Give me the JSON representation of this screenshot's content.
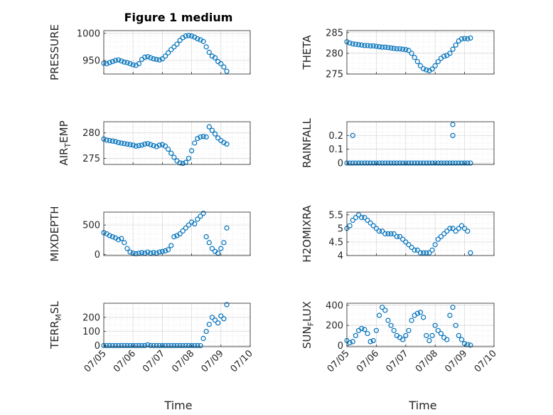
{
  "figure": {
    "title": "Figure 1 medium",
    "xlabel": "Time",
    "xticks": [
      "07/05",
      "07/06",
      "07/07",
      "07/08",
      "07/09",
      "07/10"
    ],
    "marker_color": "#0072BD"
  },
  "chart_data": [
    {
      "type": "scatter",
      "ylabel": "PRESSURE",
      "ylabel_sub": null,
      "xlim": [
        0,
        5
      ],
      "ylim": [
        925,
        1005
      ],
      "yticks": [
        "950",
        "1000"
      ],
      "ytick_values": [
        950,
        1000
      ],
      "grid": true,
      "x": [
        0.0,
        0.1,
        0.2,
        0.3,
        0.4,
        0.5,
        0.6,
        0.7,
        0.8,
        0.9,
        1.0,
        1.1,
        1.2,
        1.3,
        1.4,
        1.5,
        1.6,
        1.7,
        1.8,
        1.9,
        2.0,
        2.1,
        2.2,
        2.3,
        2.4,
        2.5,
        2.6,
        2.7,
        2.8,
        2.9,
        3.0,
        3.1,
        3.2,
        3.3,
        3.4,
        3.5,
        3.6,
        3.7,
        3.8,
        3.9,
        4.0,
        4.1,
        4.2
      ],
      "y": [
        945,
        944,
        946,
        948,
        950,
        951,
        949,
        947,
        946,
        944,
        942,
        941,
        944,
        952,
        956,
        957,
        955,
        953,
        952,
        951,
        953,
        958,
        964,
        970,
        975,
        980,
        987,
        992,
        995,
        996,
        995,
        993,
        990,
        988,
        985,
        975,
        965,
        958,
        955,
        948,
        944,
        938,
        930
      ]
    },
    {
      "type": "scatter",
      "ylabel": "THETA",
      "ylabel_sub": null,
      "xlim": [
        0,
        5
      ],
      "ylim": [
        275,
        285.5
      ],
      "yticks": [
        "275",
        "280",
        "285"
      ],
      "ytick_values": [
        275,
        280,
        285
      ],
      "grid": true,
      "x": [
        0.0,
        0.1,
        0.2,
        0.3,
        0.4,
        0.5,
        0.6,
        0.7,
        0.8,
        0.9,
        1.0,
        1.1,
        1.2,
        1.3,
        1.4,
        1.5,
        1.6,
        1.7,
        1.8,
        1.9,
        2.0,
        2.1,
        2.2,
        2.3,
        2.4,
        2.5,
        2.6,
        2.7,
        2.8,
        2.9,
        3.0,
        3.1,
        3.2,
        3.3,
        3.4,
        3.5,
        3.6,
        3.7,
        3.8,
        3.9,
        4.0,
        4.1,
        4.2
      ],
      "y": [
        282.8,
        282.5,
        282.3,
        282.2,
        282.1,
        282.0,
        281.9,
        281.9,
        281.8,
        281.8,
        281.7,
        281.6,
        281.5,
        281.5,
        281.4,
        281.3,
        281.2,
        281.1,
        281.1,
        281.0,
        280.9,
        280.7,
        280.0,
        279.0,
        278.0,
        277.0,
        276.3,
        276.0,
        275.8,
        276.2,
        277.0,
        278.0,
        278.8,
        279.3,
        279.5,
        280.0,
        281.0,
        282.0,
        283.0,
        283.5,
        283.6,
        283.5,
        283.7
      ]
    },
    {
      "type": "scatter",
      "ylabel": "AIR",
      "ylabel_sub": "T",
      "ylabel_suffix": "EMP",
      "xlim": [
        0,
        5
      ],
      "ylim": [
        273.8,
        282.2
      ],
      "yticks": [
        "275",
        "280"
      ],
      "ytick_values": [
        275,
        280
      ],
      "grid": true,
      "x": [
        0.0,
        0.1,
        0.2,
        0.3,
        0.4,
        0.5,
        0.6,
        0.7,
        0.8,
        0.9,
        1.0,
        1.1,
        1.2,
        1.3,
        1.4,
        1.5,
        1.6,
        1.7,
        1.8,
        1.9,
        2.0,
        2.1,
        2.2,
        2.3,
        2.4,
        2.5,
        2.6,
        2.7,
        2.8,
        2.9,
        3.0,
        3.1,
        3.2,
        3.3,
        3.4,
        3.5,
        3.6,
        3.7,
        3.8,
        3.9,
        4.0,
        4.1,
        4.2
      ],
      "y": [
        278.8,
        278.6,
        278.5,
        278.4,
        278.3,
        278.1,
        278.0,
        277.9,
        277.8,
        277.7,
        277.6,
        277.4,
        277.5,
        277.6,
        277.8,
        277.9,
        277.7,
        277.5,
        277.3,
        277.6,
        277.7,
        277.4,
        276.8,
        276.0,
        275.2,
        274.5,
        274.1,
        274.0,
        274.2,
        275.0,
        276.5,
        278.0,
        278.9,
        279.2,
        279.3,
        279.2,
        281.2,
        280.5,
        279.8,
        279.0,
        278.5,
        278.1,
        277.8
      ]
    },
    {
      "type": "scatter",
      "ylabel": "RAINFALL",
      "ylabel_sub": null,
      "xlim": [
        0,
        5
      ],
      "ylim": [
        -0.01,
        0.3
      ],
      "yticks": [
        "0",
        "0.1",
        "0.2"
      ],
      "ytick_values": [
        0,
        0.1,
        0.2
      ],
      "grid": true,
      "x": [
        0.0,
        0.1,
        0.2,
        0.3,
        0.4,
        0.5,
        0.6,
        0.7,
        0.8,
        0.9,
        1.0,
        1.1,
        1.2,
        1.3,
        1.4,
        1.5,
        1.6,
        1.7,
        1.8,
        1.9,
        2.0,
        2.1,
        2.2,
        2.3,
        2.4,
        2.5,
        2.6,
        2.7,
        2.8,
        2.9,
        3.0,
        3.1,
        3.2,
        3.3,
        3.4,
        3.5,
        3.6,
        3.7,
        3.8,
        3.9,
        4.0,
        4.1,
        4.2,
        0.2,
        3.6,
        3.6
      ],
      "y": [
        0,
        0,
        0,
        0,
        0,
        0,
        0,
        0,
        0,
        0,
        0,
        0,
        0,
        0,
        0,
        0,
        0,
        0,
        0,
        0,
        0,
        0,
        0,
        0,
        0,
        0,
        0,
        0,
        0,
        0,
        0,
        0,
        0,
        0,
        0,
        0,
        0,
        0,
        0,
        0,
        0,
        0,
        0,
        0.2,
        0.2,
        0.28
      ]
    },
    {
      "type": "scatter",
      "ylabel": "MIXDEPTH",
      "ylabel_sub": null,
      "xlim": [
        0,
        5
      ],
      "ylim": [
        -20,
        720
      ],
      "yticks": [
        "0",
        "500"
      ],
      "ytick_values": [
        0,
        500
      ],
      "grid": true,
      "x": [
        0.0,
        0.1,
        0.2,
        0.3,
        0.4,
        0.5,
        0.6,
        0.7,
        0.8,
        0.9,
        1.0,
        1.1,
        1.2,
        1.3,
        1.4,
        1.5,
        1.6,
        1.7,
        1.8,
        1.9,
        2.0,
        2.1,
        2.2,
        2.3,
        2.4,
        2.5,
        2.6,
        2.7,
        2.8,
        2.9,
        3.0,
        3.1,
        3.2,
        3.3,
        3.4,
        3.5,
        3.6,
        3.7,
        3.8,
        3.9,
        4.0,
        4.1,
        4.2
      ],
      "y": [
        370,
        350,
        320,
        300,
        280,
        250,
        270,
        200,
        100,
        40,
        20,
        10,
        20,
        30,
        20,
        40,
        20,
        30,
        20,
        40,
        50,
        60,
        80,
        150,
        300,
        320,
        350,
        400,
        450,
        500,
        550,
        520,
        600,
        650,
        700,
        300,
        200,
        100,
        50,
        20,
        100,
        200,
        450
      ]
    },
    {
      "type": "scatter",
      "ylabel": "H2OMIXRA",
      "ylabel_sub": null,
      "xlim": [
        0,
        5
      ],
      "ylim": [
        4.0,
        5.6
      ],
      "yticks": [
        "4",
        "4.5",
        "5",
        "5.5"
      ],
      "ytick_values": [
        4,
        4.5,
        5,
        5.5
      ],
      "grid": true,
      "x": [
        0.0,
        0.1,
        0.2,
        0.3,
        0.4,
        0.5,
        0.6,
        0.7,
        0.8,
        0.9,
        1.0,
        1.1,
        1.2,
        1.3,
        1.4,
        1.5,
        1.6,
        1.7,
        1.8,
        1.9,
        2.0,
        2.1,
        2.2,
        2.3,
        2.4,
        2.5,
        2.6,
        2.7,
        2.8,
        2.9,
        3.0,
        3.1,
        3.2,
        3.3,
        3.4,
        3.5,
        3.6,
        3.7,
        3.8,
        3.9,
        4.0,
        4.1,
        4.2
      ],
      "y": [
        5.0,
        5.1,
        5.3,
        5.4,
        5.5,
        5.4,
        5.4,
        5.3,
        5.2,
        5.1,
        5.0,
        4.9,
        4.9,
        4.8,
        4.8,
        4.8,
        4.8,
        4.7,
        4.7,
        4.6,
        4.5,
        4.4,
        4.3,
        4.2,
        4.2,
        4.1,
        4.1,
        4.1,
        4.1,
        4.2,
        4.4,
        4.6,
        4.7,
        4.8,
        4.9,
        5.0,
        5.0,
        4.9,
        5.0,
        5.1,
        5.0,
        4.9,
        4.1
      ]
    },
    {
      "type": "scatter",
      "ylabel": "TERR",
      "ylabel_sub": "M",
      "ylabel_suffix": "SL",
      "xlim": [
        0,
        5
      ],
      "ylim": [
        -8,
        300
      ],
      "yticks": [
        "0",
        "100",
        "200"
      ],
      "ytick_values": [
        0,
        100,
        200
      ],
      "grid": true,
      "x": [
        0.0,
        0.1,
        0.2,
        0.3,
        0.4,
        0.5,
        0.6,
        0.7,
        0.8,
        0.9,
        1.0,
        1.1,
        1.2,
        1.3,
        1.4,
        1.5,
        1.6,
        1.7,
        1.8,
        1.9,
        2.0,
        2.1,
        2.2,
        2.3,
        2.4,
        2.5,
        2.6,
        2.7,
        2.8,
        2.9,
        3.0,
        3.1,
        3.2,
        3.3,
        3.4,
        3.5,
        3.6,
        3.7,
        3.8,
        3.9,
        4.0,
        4.1,
        4.2
      ],
      "y": [
        0,
        0,
        0,
        0,
        0,
        0,
        0,
        0,
        0,
        0,
        0,
        0,
        0,
        0,
        0,
        5,
        0,
        0,
        0,
        0,
        0,
        0,
        0,
        0,
        0,
        0,
        0,
        0,
        0,
        0,
        0,
        0,
        0,
        0,
        50,
        100,
        150,
        200,
        180,
        160,
        210,
        190,
        290
      ]
    },
    {
      "type": "scatter",
      "ylabel": "SUN",
      "ylabel_sub": "F",
      "ylabel_suffix": "LUX",
      "xlim": [
        0,
        5
      ],
      "ylim": [
        -10,
        420
      ],
      "yticks": [
        "0",
        "200",
        "400"
      ],
      "ytick_values": [
        0,
        200,
        400
      ],
      "grid": true,
      "x": [
        0.0,
        0.1,
        0.2,
        0.3,
        0.4,
        0.5,
        0.6,
        0.7,
        0.8,
        0.9,
        1.0,
        1.1,
        1.2,
        1.3,
        1.4,
        1.5,
        1.6,
        1.7,
        1.8,
        1.9,
        2.0,
        2.1,
        2.2,
        2.3,
        2.4,
        2.5,
        2.6,
        2.7,
        2.8,
        2.9,
        3.0,
        3.1,
        3.2,
        3.3,
        3.4,
        3.5,
        3.6,
        3.7,
        3.8,
        3.9,
        4.0,
        4.1,
        4.2
      ],
      "y": [
        50,
        30,
        40,
        100,
        150,
        170,
        160,
        120,
        40,
        50,
        150,
        300,
        380,
        350,
        250,
        200,
        150,
        100,
        80,
        60,
        100,
        150,
        250,
        300,
        320,
        330,
        280,
        100,
        50,
        100,
        200,
        150,
        120,
        80,
        60,
        300,
        380,
        200,
        100,
        60,
        20,
        10,
        5
      ]
    }
  ]
}
